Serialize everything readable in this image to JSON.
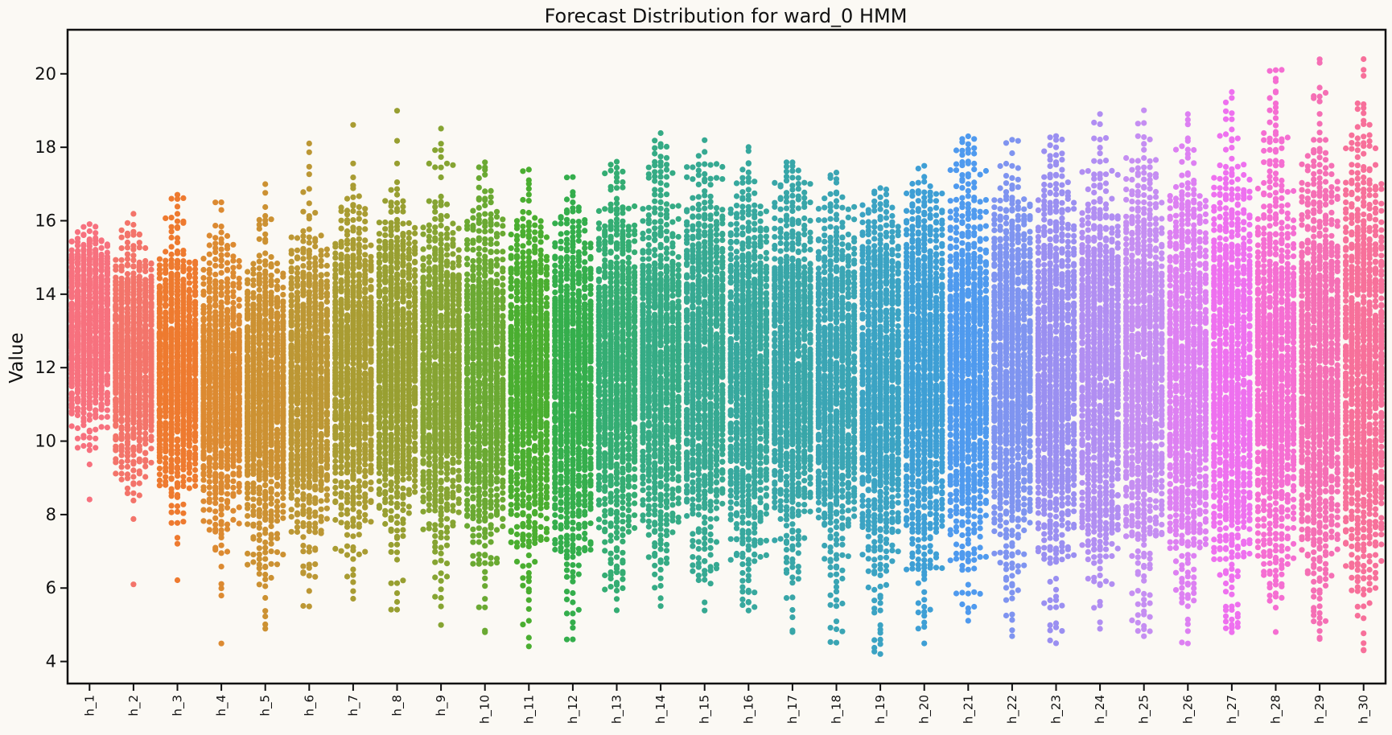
{
  "chart_data": {
    "type": "scatter",
    "subtype": "swarm",
    "title": "Forecast Distribution for ward_0 HMM",
    "xlabel": "",
    "ylabel": "Value",
    "ylim": [
      3.4,
      21.2
    ],
    "yticks": [
      4,
      6,
      8,
      10,
      12,
      14,
      16,
      18,
      20
    ],
    "grid": false,
    "legend": "none",
    "categories": [
      "h_1",
      "h_2",
      "h_3",
      "h_4",
      "h_5",
      "h_6",
      "h_7",
      "h_8",
      "h_9",
      "h_10",
      "h_11",
      "h_12",
      "h_13",
      "h_14",
      "h_15",
      "h_16",
      "h_17",
      "h_18",
      "h_19",
      "h_20",
      "h_21",
      "h_22",
      "h_23",
      "h_24",
      "h_25",
      "h_26",
      "h_27",
      "h_28",
      "h_29",
      "h_30"
    ],
    "colors": [
      "#f7717e",
      "#f3746a",
      "#ee7a2f",
      "#dc8a31",
      "#cc9132",
      "#bc9734",
      "#a99c32",
      "#989f31",
      "#86a432",
      "#6aa932",
      "#4aae30",
      "#34ae4c",
      "#34ad73",
      "#35ab85",
      "#36a992",
      "#37a89e",
      "#38a6a8",
      "#3aa5b4",
      "#3ba3c3",
      "#3e9fd5",
      "#4f9aee",
      "#7f94f0",
      "#9a8ff1",
      "#b18ef2",
      "#c58ef2",
      "#dd80f2",
      "#ee70ef",
      "#f56ed2",
      "#f56fb5",
      "#f7709a"
    ],
    "summary": {
      "median": [
        13.1,
        12.4,
        12.0,
        11.4,
        11.2,
        11.5,
        11.9,
        12.0,
        11.9,
        11.7,
        11.6,
        11.6,
        11.9,
        12.1,
        12.1,
        12.0,
        11.8,
        11.7,
        11.7,
        11.9,
        12.2,
        12.0,
        11.9,
        11.9,
        11.8,
        11.8,
        11.9,
        11.9,
        11.9,
        11.9
      ],
      "spread": [
        1.3,
        1.45,
        1.6,
        1.75,
        1.85,
        1.95,
        2.05,
        2.1,
        2.15,
        2.2,
        2.25,
        2.3,
        2.35,
        2.4,
        2.45,
        2.45,
        2.5,
        2.5,
        2.55,
        2.6,
        2.6,
        2.65,
        2.7,
        2.7,
        2.75,
        2.8,
        2.85,
        2.9,
        2.95,
        3.0
      ],
      "min": [
        8.4,
        6.1,
        6.2,
        4.5,
        4.9,
        5.5,
        5.7,
        5.4,
        5.0,
        4.8,
        4.4,
        4.6,
        5.4,
        5.5,
        5.4,
        5.4,
        4.8,
        4.5,
        4.2,
        4.5,
        5.1,
        4.7,
        4.5,
        4.9,
        4.7,
        4.5,
        4.8,
        4.8,
        4.6,
        4.3
      ],
      "max": [
        15.9,
        16.2,
        16.7,
        16.5,
        17.0,
        18.1,
        18.6,
        19.0,
        18.5,
        17.6,
        17.4,
        17.2,
        17.6,
        18.4,
        18.2,
        18.0,
        17.6,
        17.3,
        16.9,
        17.5,
        18.3,
        18.2,
        18.3,
        18.9,
        19.0,
        18.9,
        19.5,
        20.1,
        20.4,
        20.4
      ],
      "points_per_category": 1000
    }
  }
}
